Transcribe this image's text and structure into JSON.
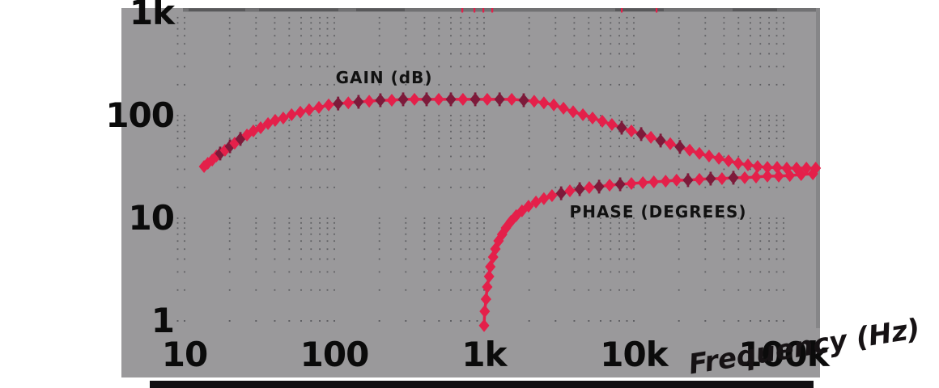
{
  "figure": {
    "panel_color": "#9a999b",
    "grid_dot_color": "#5e5e62",
    "top_border_color": "#717173",
    "top_border_dark_dash_color": "#58585a",
    "right_border_color": "#868688",
    "series_color": "#e4204a",
    "series_dark_color": "#7d1a3a",
    "text_color": "#0b0b0b",
    "top_edge_red_ticks_x": [
      570,
      585,
      596,
      607,
      767,
      810
    ]
  },
  "chart_data": {
    "type": "line",
    "title": "",
    "xlabel": "Frequency (Hz)",
    "ylabel": "",
    "x_scale": "log",
    "y_scale": "log",
    "xlim": [
      8.8,
      168000
    ],
    "ylim": [
      0.85,
      1100
    ],
    "grid": "dotted minor lattice, log-log",
    "legend_position": "inline curve annotations",
    "x_ticks": [
      "10",
      "100",
      "1k",
      "10k",
      "100k"
    ],
    "y_ticks": [
      "1k",
      "100",
      "10",
      "1"
    ],
    "annotations": [
      {
        "text": "GAIN (dB)",
        "f": 102,
        "v": 239
      },
      {
        "text": "PHASE (DEGREES)",
        "f": 3720,
        "v": 11.8
      }
    ],
    "series": [
      {
        "name": "GAIN (dB)",
        "marker": "diamond",
        "dark_indices": [
          4,
          6,
          8,
          20,
          22,
          24,
          26,
          28,
          30,
          32,
          34,
          36,
          46,
          48,
          50,
          52
        ],
        "points": [
          [
            13.5,
            31.9
          ],
          [
            14.3,
            34.3
          ],
          [
            15.3,
            36.9
          ],
          [
            16.3,
            40.4
          ],
          [
            17.3,
            42.7
          ],
          [
            18.6,
            45.9
          ],
          [
            20.1,
            50.2
          ],
          [
            21.6,
            53.9
          ],
          [
            23.6,
            59.2
          ],
          [
            26.1,
            64.7
          ],
          [
            28.8,
            70.9
          ],
          [
            32.2,
            76.2
          ],
          [
            36.1,
            83.5
          ],
          [
            40.3,
            89.8
          ],
          [
            45.6,
            94.7
          ],
          [
            51.8,
            102
          ],
          [
            59.3,
            108
          ],
          [
            67.9,
            114
          ],
          [
            78.9,
            120
          ],
          [
            91.6,
            127
          ],
          [
            106,
            131
          ],
          [
            124,
            133
          ],
          [
            145,
            136
          ],
          [
            171,
            138
          ],
          [
            203,
            141
          ],
          [
            242,
            141
          ],
          [
            288,
            144
          ],
          [
            343,
            144
          ],
          [
            413,
            144
          ],
          [
            498,
            144
          ],
          [
            600,
            144
          ],
          [
            723,
            144
          ],
          [
            873,
            144
          ],
          [
            1050,
            144
          ],
          [
            1270,
            144
          ],
          [
            1530,
            144
          ],
          [
            1840,
            141
          ],
          [
            2160,
            138
          ],
          [
            2510,
            133
          ],
          [
            2920,
            127
          ],
          [
            3390,
            118
          ],
          [
            3930,
            109
          ],
          [
            4570,
            102
          ],
          [
            5300,
            94.7
          ],
          [
            6160,
            88.1
          ],
          [
            7140,
            81.9
          ],
          [
            8300,
            76.2
          ],
          [
            9630,
            70.9
          ],
          [
            11200,
            66.0
          ],
          [
            13000,
            61.4
          ],
          [
            15100,
            57.1
          ],
          [
            17500,
            53.2
          ],
          [
            20300,
            49.5
          ],
          [
            23600,
            46.0
          ],
          [
            27400,
            42.8
          ],
          [
            31800,
            40.4
          ],
          [
            37000,
            38.3
          ],
          [
            42900,
            36.2
          ],
          [
            49800,
            34.3
          ],
          [
            57800,
            33.1
          ],
          [
            67100,
            31.9
          ],
          [
            78000,
            31.3
          ],
          [
            90500,
            31.3
          ],
          [
            105000,
            30.8
          ],
          [
            122000,
            30.8
          ],
          [
            142000,
            30.8
          ],
          [
            164000,
            30.8
          ]
        ]
      },
      {
        "name": "PHASE (DEGREES)",
        "marker": "diamond",
        "dark_indices": [
          18,
          20,
          22,
          24,
          30,
          32,
          34
        ],
        "points": [
          [
            1000,
            0.9
          ],
          [
            1010,
            1.24
          ],
          [
            1030,
            1.63
          ],
          [
            1050,
            2.14
          ],
          [
            1080,
            2.71
          ],
          [
            1100,
            3.37
          ],
          [
            1150,
            4.19
          ],
          [
            1190,
            5.02
          ],
          [
            1250,
            6.02
          ],
          [
            1320,
            6.96
          ],
          [
            1400,
            8.04
          ],
          [
            1510,
            9.3
          ],
          [
            1640,
            10.6
          ],
          [
            1790,
            11.8
          ],
          [
            1980,
            13.1
          ],
          [
            2220,
            14.4
          ],
          [
            2510,
            15.5
          ],
          [
            2840,
            16.6
          ],
          [
            3270,
            17.5
          ],
          [
            3740,
            18.5
          ],
          [
            4350,
            19.2
          ],
          [
            5040,
            19.9
          ],
          [
            5860,
            20.3
          ],
          [
            6890,
            21.0
          ],
          [
            8100,
            21.4
          ],
          [
            9630,
            21.8
          ],
          [
            11500,
            22.2
          ],
          [
            13600,
            22.6
          ],
          [
            16300,
            23.0
          ],
          [
            19300,
            23.5
          ],
          [
            23000,
            23.5
          ],
          [
            27400,
            23.9
          ],
          [
            32600,
            24.3
          ],
          [
            38800,
            24.3
          ],
          [
            46200,
            24.8
          ],
          [
            55000,
            24.8
          ],
          [
            65500,
            25.2
          ],
          [
            78000,
            25.7
          ],
          [
            92800,
            25.7
          ],
          [
            110000,
            26.1
          ],
          [
            131000,
            26.6
          ],
          [
            157000,
            27.1
          ]
        ]
      }
    ]
  }
}
